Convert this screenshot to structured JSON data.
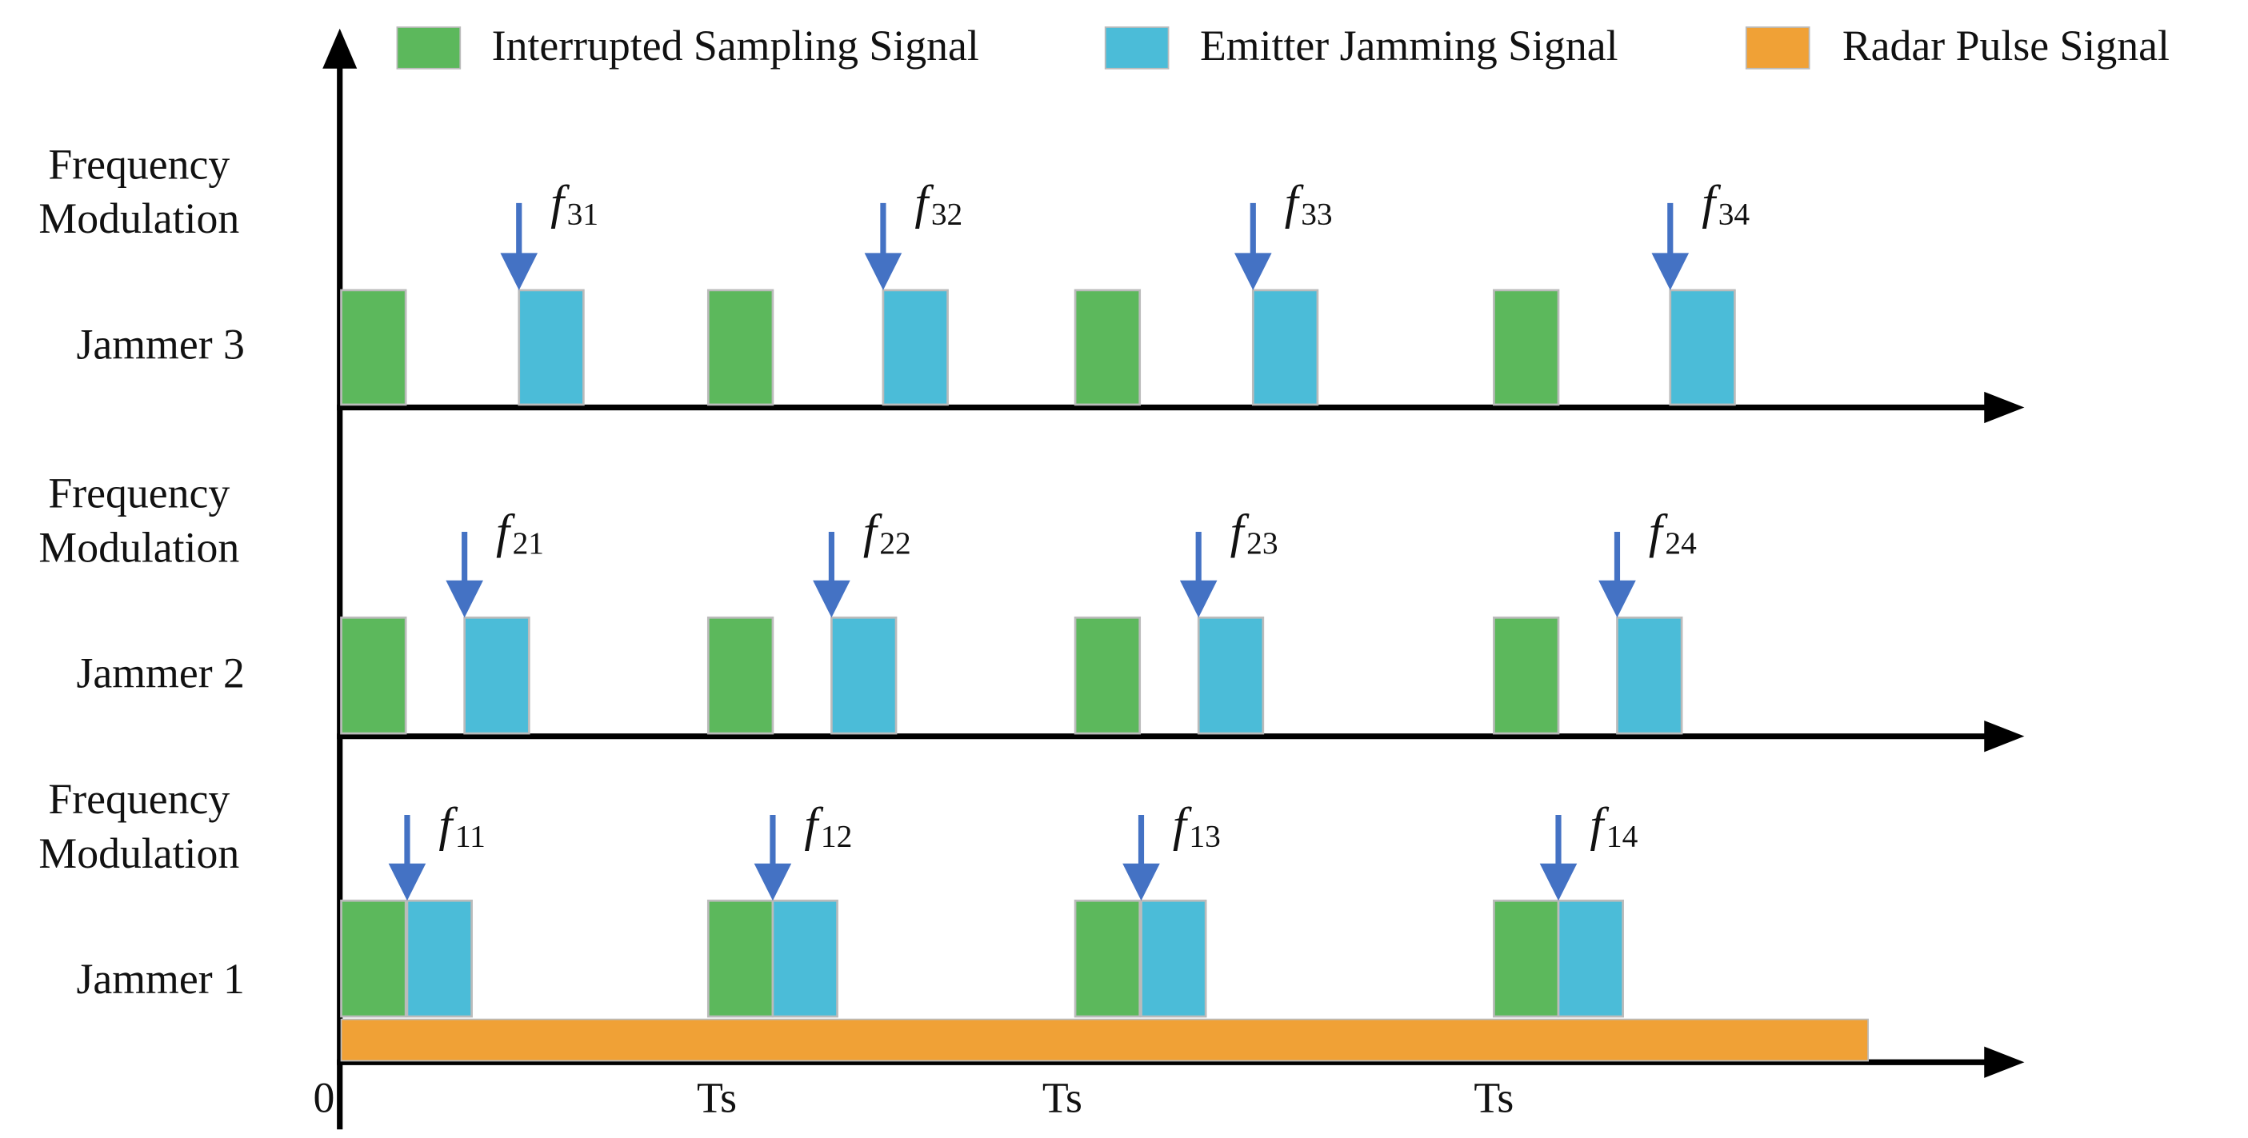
{
  "legend": [
    {
      "label": "Interrupted Sampling Signal",
      "color": "#5cb85c"
    },
    {
      "label": "Emitter Jamming Signal",
      "color": "#4bbcd8"
    },
    {
      "label": "Radar Pulse Signal",
      "color": "#f0a136"
    }
  ],
  "rows": [
    {
      "modulation_label": [
        "Frequency",
        "Modulation"
      ],
      "label": "Jammer 3",
      "frequencies": [
        {
          "symbol": "f",
          "subscript": "31"
        },
        {
          "symbol": "f",
          "subscript": "32"
        },
        {
          "symbol": "f",
          "subscript": "33"
        },
        {
          "symbol": "f",
          "subscript": "34"
        }
      ]
    },
    {
      "modulation_label": [
        "Frequency",
        "Modulation"
      ],
      "label": "Jammer 2",
      "frequencies": [
        {
          "symbol": "f",
          "subscript": "21"
        },
        {
          "symbol": "f",
          "subscript": "22"
        },
        {
          "symbol": "f",
          "subscript": "23"
        },
        {
          "symbol": "f",
          "subscript": "24"
        }
      ]
    },
    {
      "modulation_label": [
        "Frequency",
        "Modulation"
      ],
      "label": "Jammer 1",
      "frequencies": [
        {
          "symbol": "f",
          "subscript": "11"
        },
        {
          "symbol": "f",
          "subscript": "12"
        },
        {
          "symbol": "f",
          "subscript": "13"
        },
        {
          "symbol": "f",
          "subscript": "14"
        }
      ]
    }
  ],
  "x_labels": [
    "0",
    "Ts",
    "Ts",
    "Ts"
  ]
}
